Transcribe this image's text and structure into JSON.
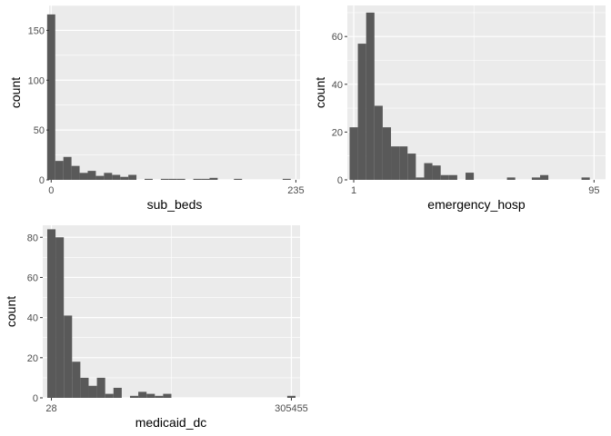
{
  "chart_data": [
    {
      "type": "bar",
      "subtype": "histogram",
      "xlabel": "sub_beds",
      "ylabel": "count",
      "x_ticks": [
        "0",
        "235"
      ],
      "y_ticks": [
        0,
        50,
        100,
        150
      ],
      "ylim": [
        0,
        175
      ],
      "x_domain": [
        -2,
        239
      ],
      "bin_width": 7.8,
      "bins": [
        {
          "x": 0.0,
          "count": 166
        },
        {
          "x": 7.8,
          "count": 19
        },
        {
          "x": 15.6,
          "count": 23
        },
        {
          "x": 23.4,
          "count": 14
        },
        {
          "x": 31.2,
          "count": 7
        },
        {
          "x": 39.0,
          "count": 9
        },
        {
          "x": 46.8,
          "count": 4
        },
        {
          "x": 54.6,
          "count": 7
        },
        {
          "x": 62.4,
          "count": 5
        },
        {
          "x": 70.2,
          "count": 3
        },
        {
          "x": 78.0,
          "count": 5
        },
        {
          "x": 93.6,
          "count": 1
        },
        {
          "x": 109.2,
          "count": 1
        },
        {
          "x": 117.0,
          "count": 1
        },
        {
          "x": 124.8,
          "count": 1
        },
        {
          "x": 140.4,
          "count": 1
        },
        {
          "x": 148.2,
          "count": 1
        },
        {
          "x": 156.0,
          "count": 2
        },
        {
          "x": 179.4,
          "count": 1
        },
        {
          "x": 226.2,
          "count": 1
        }
      ]
    },
    {
      "type": "bar",
      "subtype": "histogram",
      "xlabel": "emergency_hosp",
      "ylabel": "count",
      "x_ticks": [
        "1",
        "95"
      ],
      "y_ticks": [
        0,
        20,
        40,
        60
      ],
      "ylim": [
        0,
        73
      ],
      "x_domain": [
        -1.5,
        99.5
      ],
      "bin_width": 3.24,
      "bins": [
        {
          "x": 1.0,
          "count": 22
        },
        {
          "x": 4.24,
          "count": 57
        },
        {
          "x": 7.48,
          "count": 70
        },
        {
          "x": 10.72,
          "count": 31
        },
        {
          "x": 13.96,
          "count": 22
        },
        {
          "x": 17.2,
          "count": 14
        },
        {
          "x": 20.44,
          "count": 14
        },
        {
          "x": 23.68,
          "count": 11
        },
        {
          "x": 26.92,
          "count": 1
        },
        {
          "x": 30.16,
          "count": 7
        },
        {
          "x": 33.4,
          "count": 6
        },
        {
          "x": 36.64,
          "count": 2
        },
        {
          "x": 39.88,
          "count": 2
        },
        {
          "x": 46.36,
          "count": 3
        },
        {
          "x": 62.56,
          "count": 1
        },
        {
          "x": 72.28,
          "count": 1
        },
        {
          "x": 75.52,
          "count": 2
        },
        {
          "x": 91.72,
          "count": 1
        }
      ]
    },
    {
      "type": "bar",
      "subtype": "histogram",
      "xlabel": "medicaid_dc",
      "ylabel": "count",
      "x_ticks": [
        "28",
        "305455"
      ],
      "y_ticks": [
        0,
        20,
        40,
        60,
        80
      ],
      "ylim": [
        0,
        86
      ],
      "x_domain": [
        -11000,
        316500
      ],
      "bin_width": 10532,
      "bins": [
        {
          "x": 28,
          "count": 84
        },
        {
          "x": 10560,
          "count": 80
        },
        {
          "x": 21092,
          "count": 41
        },
        {
          "x": 31624,
          "count": 18
        },
        {
          "x": 42156,
          "count": 10
        },
        {
          "x": 52688,
          "count": 6
        },
        {
          "x": 63220,
          "count": 10
        },
        {
          "x": 73752,
          "count": 2
        },
        {
          "x": 84284,
          "count": 5
        },
        {
          "x": 105348,
          "count": 1
        },
        {
          "x": 115880,
          "count": 3
        },
        {
          "x": 126412,
          "count": 2
        },
        {
          "x": 136944,
          "count": 1
        },
        {
          "x": 147476,
          "count": 2
        },
        {
          "x": 305455,
          "count": 1
        }
      ]
    }
  ]
}
